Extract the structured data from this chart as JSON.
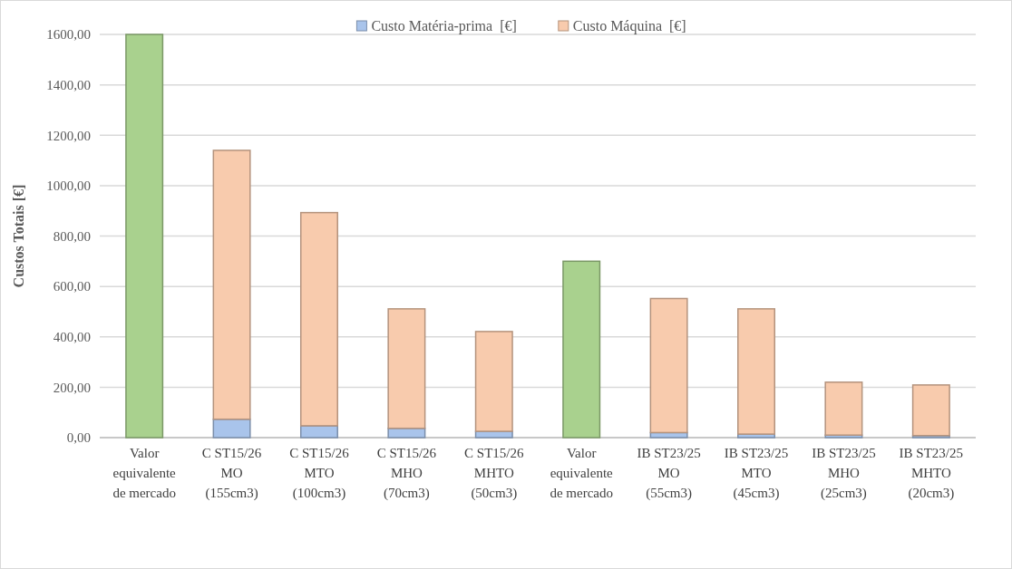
{
  "chart_data": {
    "type": "bar",
    "stacked": true,
    "ylabel": "Custos Totais [€]",
    "categories": [
      "Valor\nequivalente\nde mercado",
      "C ST15/26\nMO\n(155cm3)",
      "C ST15/26\nMTO\n(100cm3)",
      "C ST15/26\nMHO\n(70cm3)",
      "C ST15/26\nMHTO\n(50cm3)",
      "Valor\nequivalente\nde mercado",
      "IB ST23/25\nMO\n(55cm3)",
      "IB ST23/25\nMTO\n(45cm3)",
      "IB ST23/25\nMHO\n(25cm3)",
      "IB ST23/25\nMHTO\n(20cm3)"
    ],
    "series": [
      {
        "name": "Custo Matéria-prima  [€]",
        "color": "#a9c4eb",
        "values": [
          null,
          73,
          47,
          37,
          25,
          null,
          20,
          14,
          10,
          8
        ]
      },
      {
        "name": "Custo Máquina  [€]",
        "color": "#f8cbad",
        "values": [
          null,
          1067,
          846,
          474,
          396,
          null,
          532,
          497,
          210,
          201
        ]
      },
      {
        "color": "#a9d18e",
        "values": [
          1600,
          null,
          null,
          null,
          null,
          700,
          null,
          null,
          null,
          null
        ]
      }
    ],
    "ylim": [
      0,
      1600
    ],
    "yticks": [
      {
        "value": 0,
        "label": "0,00"
      },
      {
        "value": 200,
        "label": "200,00"
      },
      {
        "value": 400,
        "label": "400,00"
      },
      {
        "value": 600,
        "label": "600,00"
      },
      {
        "value": 800,
        "label": "800,00"
      },
      {
        "value": 1000,
        "label": "1000,00"
      },
      {
        "value": 1200,
        "label": "1200,00"
      },
      {
        "value": 1400,
        "label": "1400,00"
      },
      {
        "value": 1600,
        "label": "1600,00"
      }
    ],
    "grid": "y",
    "legend": "top"
  }
}
